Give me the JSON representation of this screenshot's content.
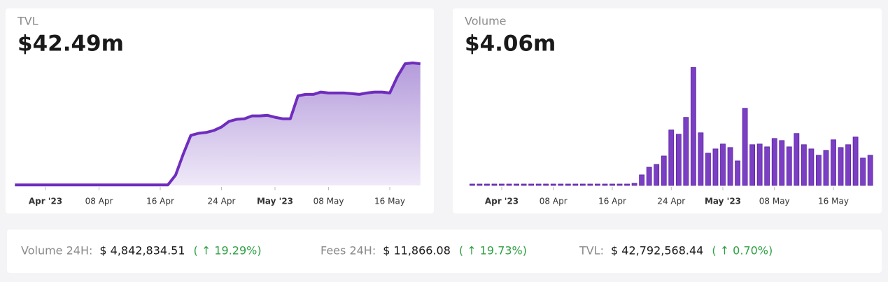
{
  "chart_data": [
    {
      "type": "area",
      "title": "TVL",
      "headline": "$42.49m",
      "color": "#6f2dbd",
      "x": [
        "2023-03-28",
        "2023-03-29",
        "2023-03-30",
        "2023-03-31",
        "2023-04-01",
        "2023-04-02",
        "2023-04-03",
        "2023-04-04",
        "2023-04-05",
        "2023-04-06",
        "2023-04-07",
        "2023-04-08",
        "2023-04-09",
        "2023-04-10",
        "2023-04-11",
        "2023-04-12",
        "2023-04-13",
        "2023-04-14",
        "2023-04-15",
        "2023-04-16",
        "2023-04-17",
        "2023-04-18",
        "2023-04-19",
        "2023-04-20",
        "2023-04-21",
        "2023-04-22",
        "2023-04-23",
        "2023-04-24",
        "2023-04-25",
        "2023-04-26",
        "2023-04-27",
        "2023-04-28",
        "2023-04-29",
        "2023-04-30",
        "2023-05-01",
        "2023-05-02",
        "2023-05-03",
        "2023-05-04",
        "2023-05-05",
        "2023-05-06",
        "2023-05-07",
        "2023-05-08",
        "2023-05-09",
        "2023-05-10",
        "2023-05-11",
        "2023-05-12",
        "2023-05-13",
        "2023-05-14",
        "2023-05-15",
        "2023-05-16",
        "2023-05-17",
        "2023-05-18",
        "2023-05-19",
        "2023-05-20"
      ],
      "values": [
        0.2,
        0.2,
        0.2,
        0.2,
        0.2,
        0.2,
        0.2,
        0.2,
        0.2,
        0.2,
        0.2,
        0.2,
        0.2,
        0.2,
        0.2,
        0.2,
        0.2,
        0.2,
        0.2,
        0.2,
        0.2,
        3.6,
        10.9,
        17.5,
        18.2,
        18.5,
        19.2,
        20.4,
        22.4,
        23.1,
        23.3,
        24.3,
        24.3,
        24.5,
        23.8,
        23.3,
        23.3,
        31.3,
        31.8,
        31.8,
        32.6,
        32.3,
        32.3,
        32.3,
        32.1,
        31.8,
        32.3,
        32.6,
        32.6,
        32.3,
        38.0,
        42.5,
        42.8,
        42.49
      ],
      "ylim": [
        0,
        44
      ],
      "xticks": [
        {
          "value": "2023-04-01",
          "label": "Apr '23"
        },
        {
          "value": "2023-04-08",
          "label": "08 Apr"
        },
        {
          "value": "2023-04-16",
          "label": "16 Apr"
        },
        {
          "value": "2023-04-24",
          "label": "24 Apr"
        },
        {
          "value": "2023-05-01",
          "label": "May '23"
        },
        {
          "value": "2023-05-08",
          "label": "08 May"
        },
        {
          "value": "2023-05-16",
          "label": "16 May"
        }
      ]
    },
    {
      "type": "bar",
      "title": "Volume",
      "headline": "$4.06m",
      "color": "#7b3fc4",
      "x": [
        "2023-03-28",
        "2023-03-29",
        "2023-03-30",
        "2023-03-31",
        "2023-04-01",
        "2023-04-02",
        "2023-04-03",
        "2023-04-04",
        "2023-04-05",
        "2023-04-06",
        "2023-04-07",
        "2023-04-08",
        "2023-04-09",
        "2023-04-10",
        "2023-04-11",
        "2023-04-12",
        "2023-04-13",
        "2023-04-14",
        "2023-04-15",
        "2023-04-16",
        "2023-04-17",
        "2023-04-18",
        "2023-04-19",
        "2023-04-20",
        "2023-04-21",
        "2023-04-22",
        "2023-04-23",
        "2023-04-24",
        "2023-04-25",
        "2023-04-26",
        "2023-04-27",
        "2023-04-28",
        "2023-04-29",
        "2023-04-30",
        "2023-05-01",
        "2023-05-02",
        "2023-05-03",
        "2023-05-04",
        "2023-05-05",
        "2023-05-06",
        "2023-05-07",
        "2023-05-08",
        "2023-05-09",
        "2023-05-10",
        "2023-05-11",
        "2023-05-12",
        "2023-05-13",
        "2023-05-14",
        "2023-05-15",
        "2023-05-16",
        "2023-05-17",
        "2023-05-18",
        "2023-05-19",
        "2023-05-20",
        "2023-05-21"
      ],
      "values": [
        0,
        0,
        0,
        0,
        0,
        0,
        0,
        0,
        0,
        0,
        0,
        0,
        0,
        0,
        0,
        0,
        0,
        0,
        0,
        0,
        0,
        0,
        0.28,
        1.42,
        2.45,
        2.83,
        3.96,
        7.46,
        6.89,
        9.16,
        15.86,
        7.08,
        4.34,
        4.91,
        5.57,
        5.1,
        3.3,
        10.38,
        5.48,
        5.57,
        5.19,
        6.32,
        6.04,
        5.19,
        6.99,
        5.48,
        4.91,
        4.06,
        4.72,
        6.14,
        5.1,
        5.48,
        6.51,
        3.68,
        4.06
      ],
      "ylim": [
        0,
        16
      ],
      "xticks": [
        {
          "value": "2023-04-01",
          "label": "Apr '23"
        },
        {
          "value": "2023-04-08",
          "label": "08 Apr"
        },
        {
          "value": "2023-04-16",
          "label": "16 Apr"
        },
        {
          "value": "2023-04-24",
          "label": "24 Apr"
        },
        {
          "value": "2023-05-01",
          "label": "May '23"
        },
        {
          "value": "2023-05-08",
          "label": "08 May"
        },
        {
          "value": "2023-05-16",
          "label": "16 May"
        }
      ]
    }
  ],
  "stats": [
    {
      "label": "Volume 24H:",
      "value": "$ 4,842,834.51",
      "change": "( ↑ 19.29%)"
    },
    {
      "label": "Fees 24H:",
      "value": "$ 11,866.08",
      "change": "( ↑ 19.73%)"
    },
    {
      "label": "TVL:",
      "value": "$ 42,792,568.44",
      "change": "( ↑ 0.70%)"
    }
  ]
}
